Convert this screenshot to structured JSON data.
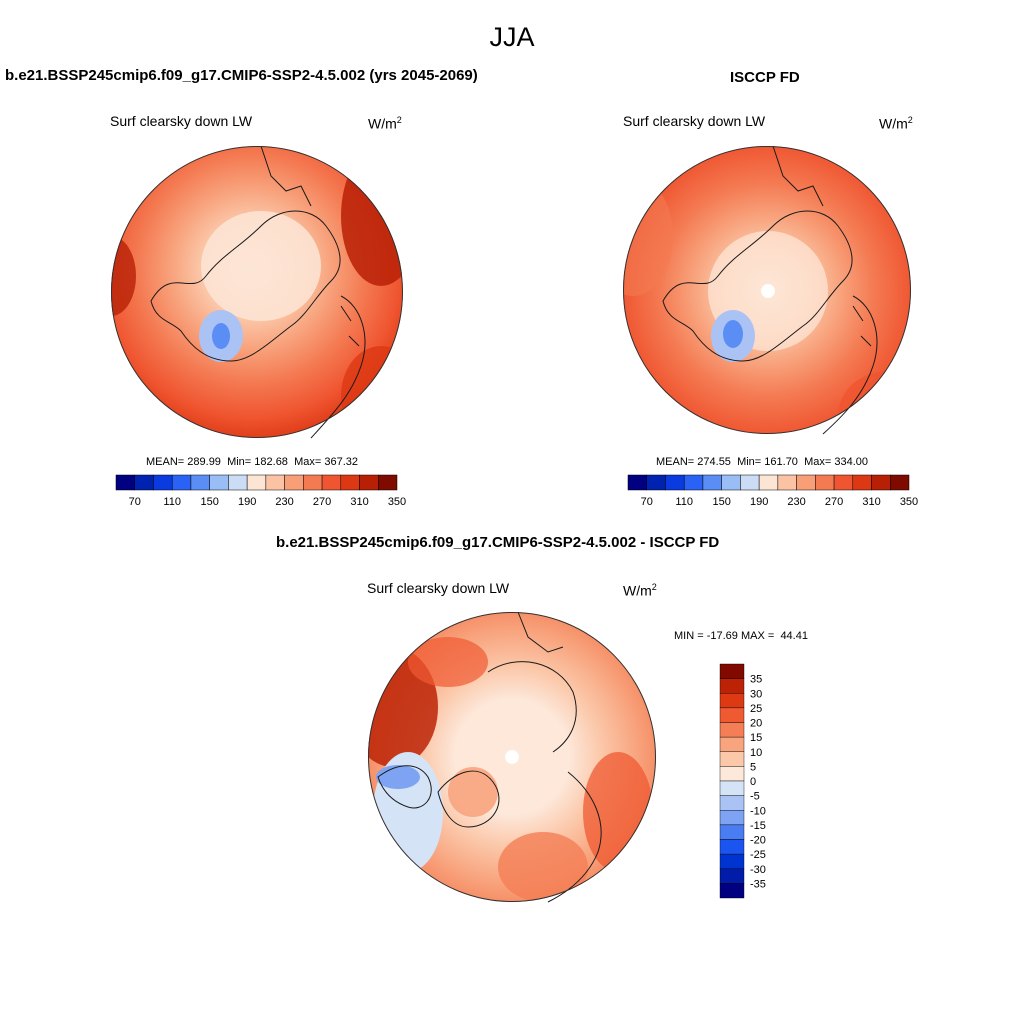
{
  "page_title": "JJA",
  "colors": {
    "abs_levels": [
      "#000080",
      "#0022b0",
      "#0a3be0",
      "#2a62f5",
      "#5a8ef5",
      "#9bbdf5",
      "#cbdcf6",
      "#fde5d6",
      "#fbc3a4",
      "#f89f78",
      "#f47a52",
      "#ef5530",
      "#dc3813",
      "#b82006",
      "#7e0a00"
    ],
    "diff_levels": [
      "#000080",
      "#001ca8",
      "#0034d0",
      "#1c54f0",
      "#4a7cf2",
      "#7ea3f3",
      "#aac3f4",
      "#d5e3f7",
      "#fde8da",
      "#fbc8aa",
      "#f8a47e",
      "#f47e55",
      "#ef5a32",
      "#dd3a14",
      "#bc2306",
      "#800a00"
    ],
    "coastline": "#1a1a1a"
  },
  "chart_data": [
    {
      "type": "map-contour",
      "panel": "model",
      "title": "b.e21.BSSP245cmip6.f09_g17.CMIP6-SSP2-4.5.002 (yrs 2045-2069)",
      "variable": "Surf clearsky down LW",
      "units_base": "W/m",
      "units_exp": "2",
      "stats": {
        "mean_label": "MEAN=",
        "mean": "289.99",
        "min_label": "Min=",
        "min": "182.68",
        "max_label": "Max=",
        "max": "367.32"
      },
      "colorbar_ticks": [
        "70",
        "110",
        "150",
        "190",
        "230",
        "270",
        "310",
        "350"
      ]
    },
    {
      "type": "map-contour",
      "panel": "obs",
      "title": "ISCCP FD",
      "variable": "Surf clearsky down LW",
      "units_base": "W/m",
      "units_exp": "2",
      "stats": {
        "mean_label": "MEAN=",
        "mean": "274.55",
        "min_label": "Min=",
        "min": "161.70",
        "max_label": "Max=",
        "max": "334.00"
      },
      "colorbar_ticks": [
        "70",
        "110",
        "150",
        "190",
        "230",
        "270",
        "310",
        "350"
      ]
    },
    {
      "type": "map-contour",
      "panel": "difference",
      "title": "b.e21.BSSP245cmip6.f09_g17.CMIP6-SSP2-4.5.002 - ISCCP FD",
      "variable": "Surf clearsky down LW",
      "units_base": "W/m",
      "units_exp": "2",
      "stats": {
        "min_label": "MIN =",
        "min": "-17.69",
        "max_label": "MAX =",
        "max": "44.41"
      },
      "colorbar_ticks": [
        "35",
        "30",
        "25",
        "20",
        "15",
        "10",
        "5",
        "0",
        "-5",
        "-10",
        "-15",
        "-20",
        "-25",
        "-30",
        "-35"
      ]
    }
  ]
}
